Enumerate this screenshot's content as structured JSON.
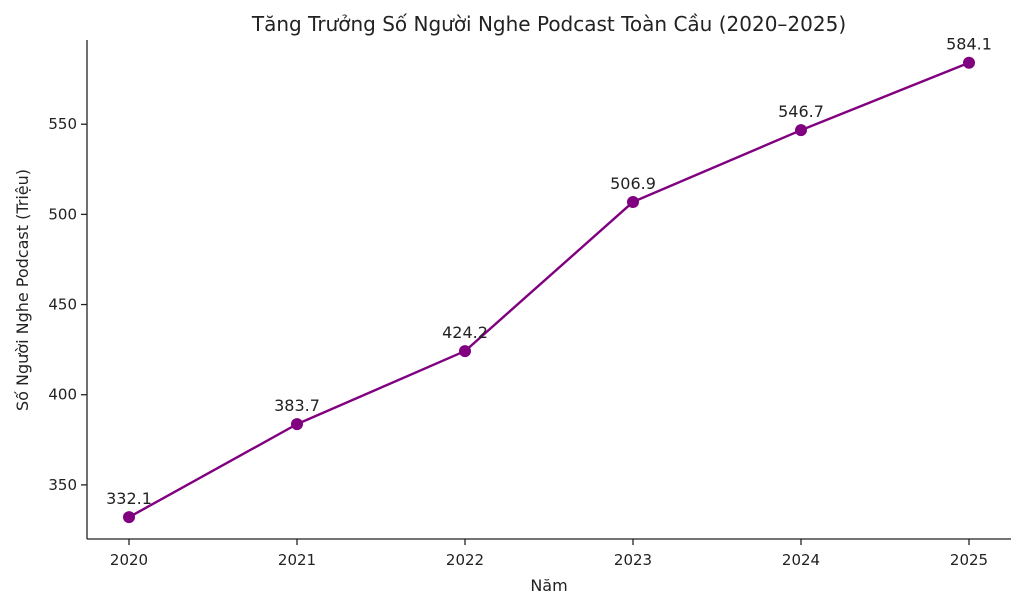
{
  "chart_data": {
    "type": "line",
    "title": "Tăng Trưởng Số Người Nghe Podcast Toàn Cầu (2020–2025)",
    "xlabel": "Năm",
    "ylabel": "Số Người Nghe Podcast (Triệu)",
    "x": [
      "2020",
      "2021",
      "2022",
      "2023",
      "2024",
      "2025"
    ],
    "values": [
      332.1,
      383.7,
      424.2,
      506.9,
      546.7,
      584.1
    ],
    "data_labels": [
      "332.1",
      "383.7",
      "424.2",
      "506.9",
      "546.7",
      "584.1"
    ],
    "yticks": [
      350,
      400,
      450,
      500,
      550
    ],
    "ytick_labels": [
      "350",
      "400",
      "450",
      "500",
      "550"
    ],
    "ylim": [
      320.0,
      596.7
    ],
    "color": "#800080",
    "grid": false,
    "legend": "none"
  }
}
